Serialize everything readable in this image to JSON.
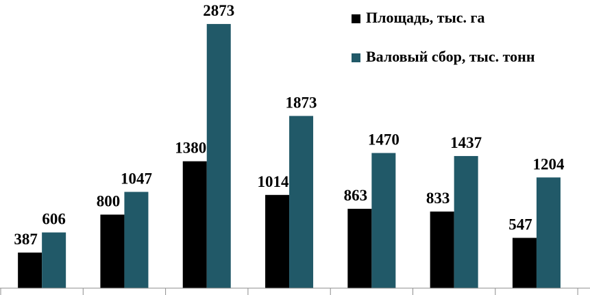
{
  "chart_data": {
    "type": "bar",
    "categories": [
      null,
      null,
      null,
      null,
      null,
      null,
      null
    ],
    "series": [
      {
        "name": "Площадь, тыс. га",
        "color": "#000000",
        "values": [
          387,
          800,
          1380,
          1014,
          863,
          833,
          547
        ]
      },
      {
        "name": "Валовый сбор, тыс. тонн",
        "color": "#215968",
        "values": [
          606,
          1047,
          2873,
          1873,
          1470,
          1437,
          1204
        ]
      }
    ],
    "ylim": [
      0,
      3000
    ],
    "legend": "upper right"
  }
}
